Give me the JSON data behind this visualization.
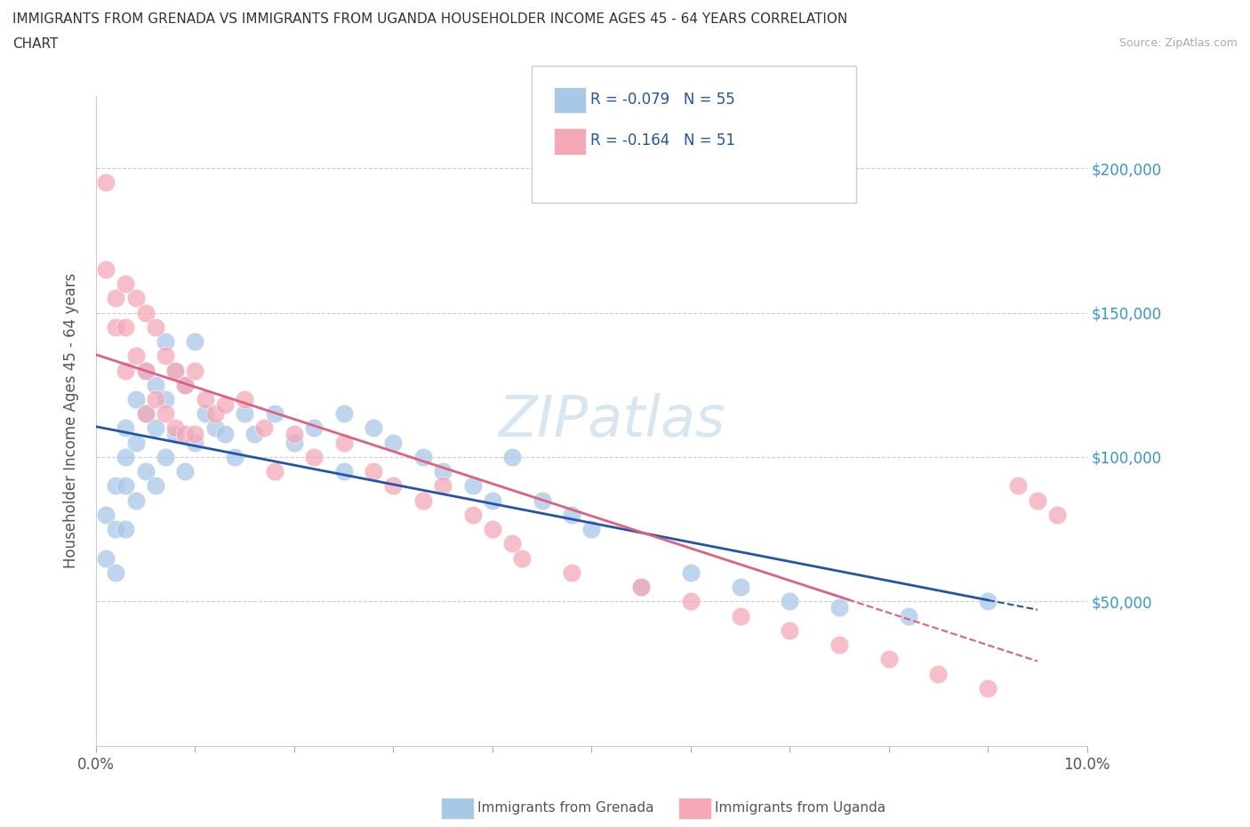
{
  "title_line1": "IMMIGRANTS FROM GRENADA VS IMMIGRANTS FROM UGANDA HOUSEHOLDER INCOME AGES 45 - 64 YEARS CORRELATION",
  "title_line2": "CHART",
  "source_text": "Source: ZipAtlas.com",
  "ylabel": "Householder Income Ages 45 - 64 years",
  "xlim": [
    0.0,
    0.1
  ],
  "ylim": [
    0,
    225000
  ],
  "R_grenada": -0.079,
  "N_grenada": 55,
  "R_uganda": -0.164,
  "N_uganda": 51,
  "color_grenada": "#a8c8e8",
  "color_uganda": "#f4a8b8",
  "line_color_grenada": "#2255aa",
  "line_color_uganda": "#e06080",
  "watermark": "ZIPatlas",
  "legend_entries": [
    "Immigrants from Grenada",
    "Immigrants from Uganda"
  ],
  "grenada_x": [
    0.001,
    0.001,
    0.002,
    0.002,
    0.002,
    0.003,
    0.003,
    0.003,
    0.003,
    0.004,
    0.004,
    0.004,
    0.005,
    0.005,
    0.005,
    0.006,
    0.006,
    0.006,
    0.007,
    0.007,
    0.007,
    0.008,
    0.008,
    0.009,
    0.009,
    0.01,
    0.01,
    0.011,
    0.012,
    0.013,
    0.014,
    0.015,
    0.016,
    0.018,
    0.02,
    0.022,
    0.025,
    0.025,
    0.028,
    0.03,
    0.033,
    0.035,
    0.038,
    0.04,
    0.042,
    0.045,
    0.048,
    0.05,
    0.055,
    0.06,
    0.065,
    0.07,
    0.075,
    0.082,
    0.09
  ],
  "grenada_y": [
    80000,
    65000,
    90000,
    75000,
    60000,
    110000,
    100000,
    90000,
    75000,
    120000,
    105000,
    85000,
    130000,
    115000,
    95000,
    125000,
    110000,
    90000,
    140000,
    120000,
    100000,
    130000,
    108000,
    125000,
    95000,
    140000,
    105000,
    115000,
    110000,
    108000,
    100000,
    115000,
    108000,
    115000,
    105000,
    110000,
    115000,
    95000,
    110000,
    105000,
    100000,
    95000,
    90000,
    85000,
    100000,
    85000,
    80000,
    75000,
    55000,
    60000,
    55000,
    50000,
    48000,
    45000,
    50000
  ],
  "uganda_x": [
    0.001,
    0.001,
    0.002,
    0.002,
    0.003,
    0.003,
    0.003,
    0.004,
    0.004,
    0.005,
    0.005,
    0.005,
    0.006,
    0.006,
    0.007,
    0.007,
    0.008,
    0.008,
    0.009,
    0.009,
    0.01,
    0.01,
    0.011,
    0.012,
    0.013,
    0.015,
    0.017,
    0.018,
    0.02,
    0.022,
    0.025,
    0.028,
    0.03,
    0.033,
    0.035,
    0.038,
    0.04,
    0.042,
    0.043,
    0.048,
    0.055,
    0.06,
    0.065,
    0.07,
    0.075,
    0.08,
    0.085,
    0.09,
    0.093,
    0.095,
    0.097
  ],
  "uganda_y": [
    195000,
    165000,
    155000,
    145000,
    160000,
    145000,
    130000,
    155000,
    135000,
    150000,
    130000,
    115000,
    145000,
    120000,
    135000,
    115000,
    130000,
    110000,
    125000,
    108000,
    130000,
    108000,
    120000,
    115000,
    118000,
    120000,
    110000,
    95000,
    108000,
    100000,
    105000,
    95000,
    90000,
    85000,
    90000,
    80000,
    75000,
    70000,
    65000,
    60000,
    55000,
    50000,
    45000,
    40000,
    35000,
    30000,
    25000,
    20000,
    90000,
    85000,
    80000
  ]
}
